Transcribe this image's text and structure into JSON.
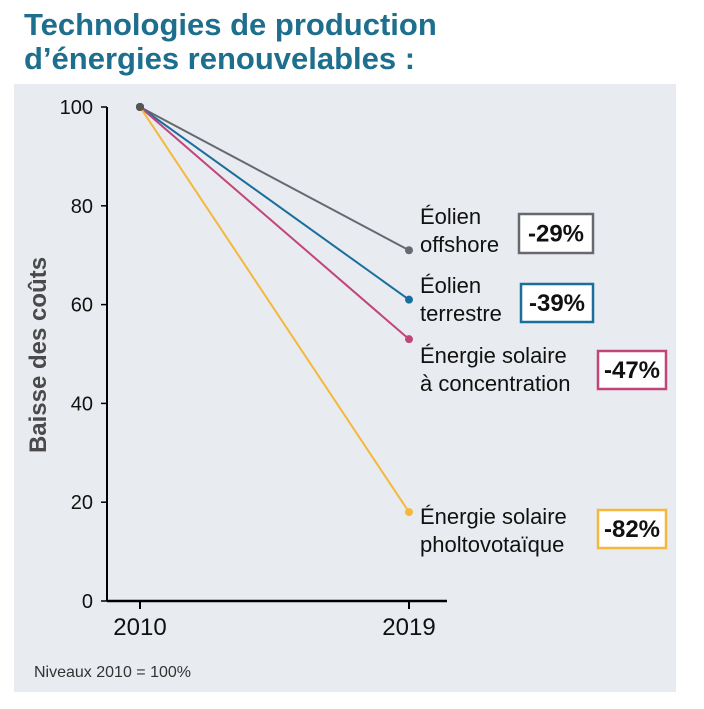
{
  "title_lines": [
    "Technologies de production",
    "d’énergies renouvelables :"
  ],
  "note": "Niveaux 2010 = 100%",
  "chart_data": {
    "type": "line",
    "title": "Technologies de production d’énergies renouvelables :",
    "ylabel": "Baisse des coûts",
    "xlabel": "",
    "x": [
      "2010",
      "2019"
    ],
    "ylim": [
      0,
      100
    ],
    "yticks": [
      0,
      20,
      40,
      60,
      80,
      100
    ],
    "grid": false,
    "series": [
      {
        "name": "Éolien offshore",
        "label_lines": [
          "Éolien",
          "offshore"
        ],
        "values": [
          100,
          71
        ],
        "change": "-29%",
        "color": "#666a70"
      },
      {
        "name": "Éolien terrestre",
        "label_lines": [
          "Éolien",
          "terrestre"
        ],
        "values": [
          100,
          61
        ],
        "change": "-39%",
        "color": "#1a6e9e"
      },
      {
        "name": "Énergie solaire à concentration",
        "label_lines": [
          "Énergie solaire",
          "à concentration"
        ],
        "values": [
          100,
          53
        ],
        "change": "-47%",
        "color": "#c2457a"
      },
      {
        "name": "Énergie solaire pholtovotaïque",
        "label_lines": [
          "Énergie solaire",
          "pholtovotaïque"
        ],
        "values": [
          100,
          18
        ],
        "change": "-82%",
        "color": "#f5b83d"
      }
    ]
  }
}
